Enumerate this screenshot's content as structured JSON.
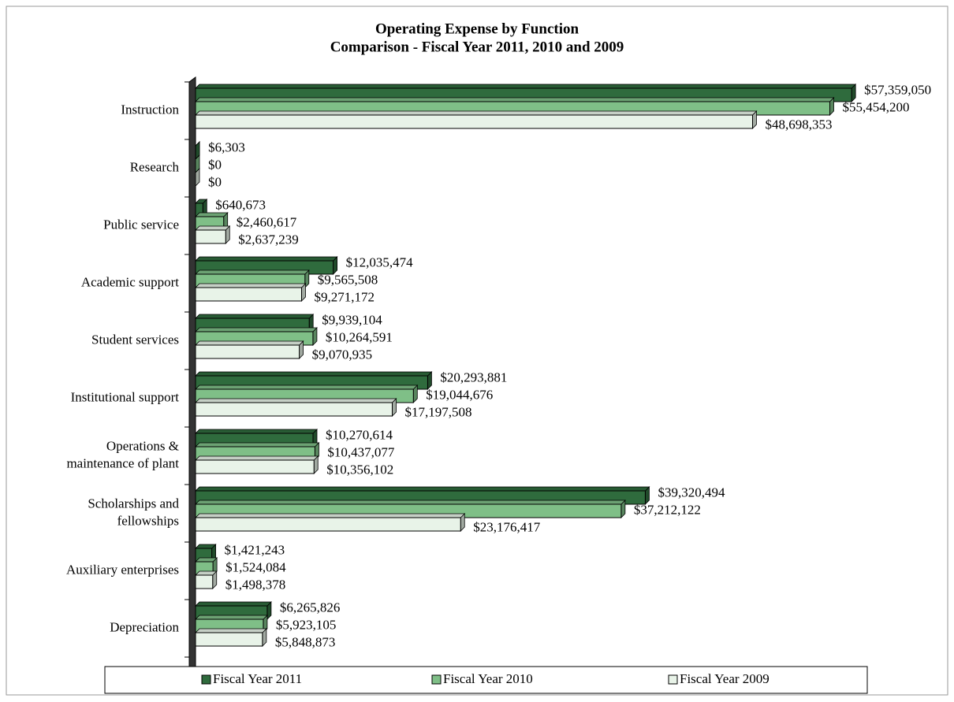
{
  "chart_data": {
    "type": "bar",
    "orientation": "horizontal",
    "title": "Operating Expense by Function",
    "subtitle": "Comparison - Fiscal Year 2011, 2010 and 2009",
    "categories": [
      "Instruction",
      "Research",
      "Public service",
      "Academic support",
      "Student services",
      "Institutional support",
      "Operations &\nmaintenance of plant",
      "Scholarships and\nfellowships",
      "Auxiliary enterprises",
      "Depreciation"
    ],
    "xlim": [
      0,
      65000000
    ],
    "legend": "bottom",
    "series": [
      {
        "name": "Fiscal Year 2011",
        "color": "#2f6b3d",
        "values": [
          57359050,
          6303,
          640673,
          12035474,
          9939104,
          20293881,
          10270614,
          39320494,
          1421243,
          6265826
        ],
        "value_labels": [
          "$57,359,050",
          "$6,303",
          "$640,673",
          "$12,035,474",
          "$9,939,104",
          "$20,293,881",
          "$10,270,614",
          "$39,320,494",
          "$1,421,243",
          "$6,265,826"
        ]
      },
      {
        "name": "Fiscal Year 2010",
        "color": "#7fbf87",
        "values": [
          55454200,
          0,
          2460617,
          9565508,
          10264591,
          19044676,
          10437077,
          37212122,
          1524084,
          5923105
        ],
        "value_labels": [
          "$55,454,200",
          "$0",
          "$2,460,617",
          "$9,565,508",
          "$10,264,591",
          "$19,044,676",
          "$10,437,077",
          "$37,212,122",
          "$1,524,084",
          "$5,923,105"
        ]
      },
      {
        "name": "Fiscal Year 2009",
        "color": "#e8f3e8",
        "values": [
          48698353,
          0,
          2637239,
          9271172,
          9070935,
          17197508,
          10356102,
          23176417,
          1498378,
          5848873
        ],
        "value_labels": [
          "$48,698,353",
          "$0",
          "$2,637,239",
          "$9,271,172",
          "$9,070,935",
          "$17,197,508",
          "$10,356,102",
          "$23,176,417",
          "$1,498,378",
          "$5,848,873"
        ]
      }
    ]
  }
}
